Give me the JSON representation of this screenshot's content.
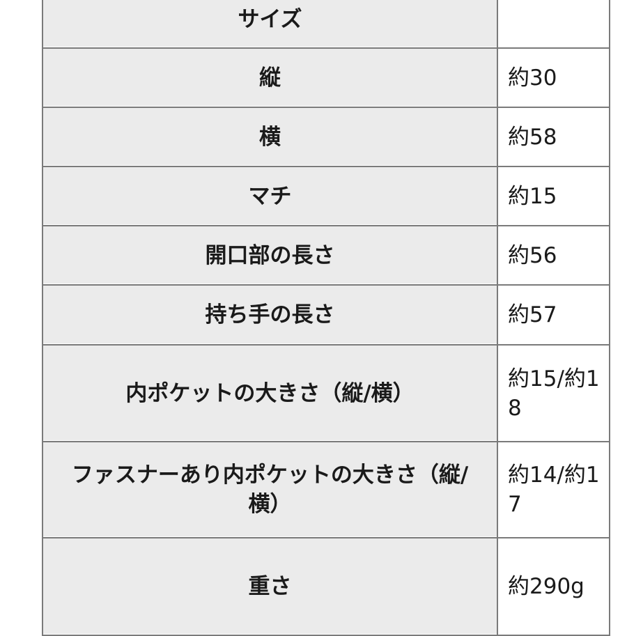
{
  "rows": [
    {
      "label": "サイズ",
      "value": ""
    },
    {
      "label": "縦",
      "value": "約30"
    },
    {
      "label": "横",
      "value": "約58"
    },
    {
      "label": "マチ",
      "value": "約15"
    },
    {
      "label": "開口部の長さ",
      "value": "約56"
    },
    {
      "label": "持ち手の長さ",
      "value": "約57"
    },
    {
      "label": "内ポケットの大きさ（縦/横）",
      "value": "約15/約18"
    },
    {
      "label": "ファスナーあり内ポケットの大きさ（縦/横）",
      "value": "約14/約17"
    },
    {
      "label": "重さ",
      "value": "約290g"
    }
  ]
}
